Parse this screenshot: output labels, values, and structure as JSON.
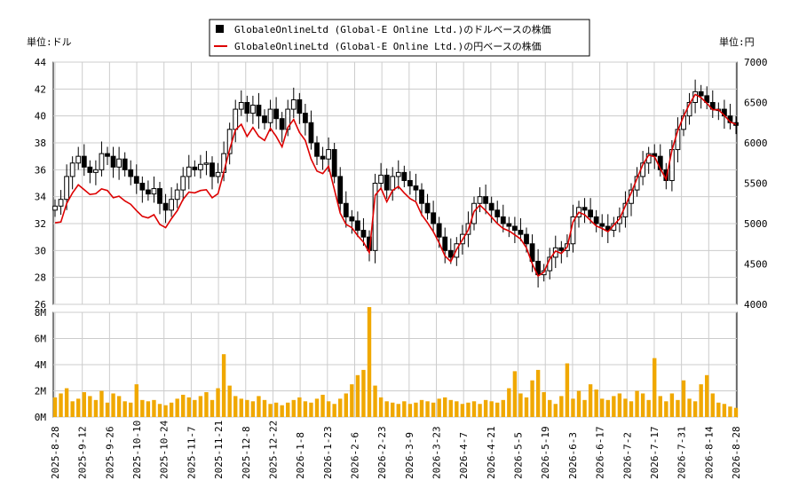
{
  "legend": {
    "usd_label": "GlobaleOnlineLtd (Global-E Online Ltd.)のドルベースの株価",
    "jpy_label": "GlobaleOnlineLtd (Global-E Online Ltd.)の円ベースの株価"
  },
  "units": {
    "left": "単位:ドル",
    "right": "単位:円"
  },
  "colors": {
    "candle": "#000000",
    "jpy_line": "#dd0000",
    "volume": "#f0a800",
    "grid": "#cccccc"
  },
  "chart_data": {
    "type": "candlestick+line+bar",
    "price_axis_usd": {
      "min": 26,
      "max": 44,
      "ticks": [
        26,
        28,
        30,
        32,
        34,
        36,
        38,
        40,
        42,
        44
      ]
    },
    "price_axis_jpy": {
      "min": 4000,
      "max": 7000,
      "ticks": [
        4000,
        4500,
        5000,
        5500,
        6000,
        6500,
        7000
      ]
    },
    "volume_axis": {
      "min": 0,
      "max": 8,
      "unit": "M",
      "ticks": [
        "0M",
        "2M",
        "4M",
        "6M",
        "8M"
      ]
    },
    "x_labels": [
      "2025-8-28",
      "2025-9-12",
      "2025-9-26",
      "2025-10-10",
      "2025-10-24",
      "2025-11-7",
      "2025-11-21",
      "2025-12-8",
      "2025-12-22",
      "2026-1-8",
      "2026-1-23",
      "2026-2-6",
      "2026-2-23",
      "2026-3-9",
      "2026-3-23",
      "2026-4-7",
      "2026-4-21",
      "2026-5-5",
      "2026-5-19",
      "2026-6-3",
      "2026-6-17",
      "2026-7-2",
      "2026-7-17",
      "2026-7-31",
      "2026-8-14",
      "2026-8-28"
    ],
    "series": [
      {
        "name": "GlobaleOnlineLtd (Global-E Online Ltd.)のドルベースの株価",
        "close": [
          33.3,
          33.8,
          35.5,
          36.5,
          37,
          36.2,
          35.8,
          36,
          37.2,
          37,
          36.2,
          36.8,
          36,
          35.5,
          35,
          34.5,
          34.2,
          34.6,
          33.5,
          33,
          33.8,
          34.5,
          35.5,
          36.2,
          36,
          36.4,
          36.5,
          35.5,
          35.8,
          37.2,
          39,
          40.5,
          41,
          40.2,
          40.8,
          40,
          39.5,
          40.5,
          39.8,
          39,
          40.5,
          41.2,
          40.2,
          39.5,
          38,
          37,
          36.8,
          37.5,
          35.5,
          33.5,
          32.5,
          32.2,
          31.5,
          31,
          30,
          35,
          35.6,
          34.5,
          35.5,
          35.8,
          35.2,
          34.8,
          34.5,
          33.5,
          32.8,
          32,
          31,
          30,
          29.5,
          30.5,
          31.2,
          32,
          33.5,
          34,
          33.5,
          33,
          32.5,
          32,
          31.8,
          31.5,
          31.2,
          30.5,
          29.2,
          28.2,
          28.5,
          29.5,
          30.2,
          30,
          30.5,
          32.5,
          33.2,
          33,
          32.5,
          32,
          31.8,
          31.5,
          32,
          32.5,
          33.5,
          34.5,
          35.5,
          36.5,
          37.2,
          37,
          36,
          35.2,
          37.5,
          39,
          40,
          41,
          41.8,
          41.5,
          41,
          40.5,
          40.5,
          40,
          39.5,
          39.3
        ]
      },
      {
        "name": "GlobaleOnlineLtd (Global-E Online Ltd.)の円ベースの株価",
        "values": [
          5010,
          5020,
          5250,
          5380,
          5480,
          5420,
          5360,
          5370,
          5430,
          5410,
          5320,
          5340,
          5280,
          5240,
          5160,
          5090,
          5070,
          5110,
          4990,
          4950,
          5060,
          5160,
          5300,
          5390,
          5380,
          5410,
          5420,
          5320,
          5370,
          5640,
          5920,
          6160,
          6230,
          6080,
          6190,
          6080,
          6030,
          6180,
          6080,
          5950,
          6190,
          6290,
          6130,
          6030,
          5800,
          5650,
          5620,
          5710,
          5420,
          5130,
          4990,
          4950,
          4850,
          4770,
          4640,
          5350,
          5440,
          5270,
          5410,
          5460,
          5380,
          5310,
          5270,
          5110,
          5010,
          4900,
          4760,
          4600,
          4530,
          4680,
          4800,
          4920,
          5150,
          5230,
          5160,
          5080,
          5000,
          4940,
          4910,
          4860,
          4810,
          4700,
          4500,
          4350,
          4400,
          4560,
          4660,
          4630,
          4710,
          5020,
          5140,
          5110,
          5040,
          4970,
          4940,
          4900,
          4980,
          5060,
          5220,
          5380,
          5560,
          5730,
          5850,
          5830,
          5680,
          5550,
          5910,
          6150,
          6330,
          6480,
          6600,
          6560,
          6490,
          6410,
          6410,
          6340,
          6260,
          6230
        ]
      },
      {
        "name": "volume",
        "values": [
          1.5,
          1.8,
          2.2,
          1.2,
          1.4,
          1.9,
          1.6,
          1.3,
          2,
          1.1,
          1.8,
          1.6,
          1.2,
          1.1,
          2.5,
          1.3,
          1.2,
          1.3,
          1,
          0.9,
          1.1,
          1.4,
          1.7,
          1.5,
          1.3,
          1.6,
          1.9,
          1.3,
          2.2,
          4.8,
          2.4,
          1.6,
          1.4,
          1.3,
          1.2,
          1.6,
          1.3,
          1.0,
          1.1,
          0.9,
          1.1,
          1.3,
          1.5,
          1.2,
          1.1,
          1.4,
          1.7,
          1.2,
          1.0,
          1.4,
          1.8,
          2.5,
          3.2,
          3.6,
          8.4,
          2.4,
          1.5,
          1.2,
          1.1,
          1.0,
          1.2,
          1.0,
          1.1,
          1.3,
          1.2,
          1.1,
          1.4,
          1.5,
          1.3,
          1.2,
          1.0,
          1.1,
          1.2,
          1.0,
          1.3,
          1.2,
          1.1,
          1.3,
          2.2,
          3.5,
          1.8,
          1.5,
          2.8,
          3.6,
          1.9,
          1.3,
          1.0,
          1.6,
          4.1,
          1.4,
          2.0,
          1.3,
          2.5,
          2.1,
          1.4,
          1.3,
          1.6,
          1.8,
          1.4,
          1.2,
          2.0,
          1.8,
          1.3,
          4.5,
          1.6,
          1.2,
          1.8,
          1.3,
          2.8,
          1.4,
          1.2,
          2.5,
          3.2,
          1.8,
          1.1,
          1.0,
          0.8,
          0.7
        ]
      }
    ]
  }
}
